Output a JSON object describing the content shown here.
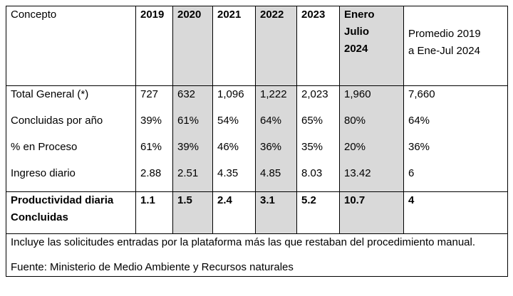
{
  "table": {
    "header": {
      "concepto": "Concepto",
      "years": [
        "2019",
        "2020",
        "2021",
        "2022",
        "2023"
      ],
      "enero": [
        "Enero",
        "Julio",
        "2024"
      ],
      "promedio": [
        "Promedio 2019",
        "a Ene-Jul 2024"
      ]
    },
    "rows": [
      {
        "label": "Total General (*)",
        "values": [
          "727",
          "632",
          "1,096",
          "1,222",
          "2,023",
          "1,960",
          "7,660"
        ]
      },
      {
        "label": "Concluidas por año",
        "values": [
          "39%",
          "61%",
          "54%",
          "64%",
          "65%",
          "80%",
          "64%"
        ]
      },
      {
        "label": "% en Proceso",
        "values": [
          "61%",
          "39%",
          "46%",
          "36%",
          "35%",
          "20%",
          "36%"
        ]
      },
      {
        "label": "Ingreso diario",
        "values": [
          "2.88",
          "2.51",
          "4.35",
          "4.85",
          "8.03",
          "13.42",
          "6"
        ]
      }
    ],
    "productividad": {
      "label": [
        "Productividad diaria",
        "Concluidas"
      ],
      "values": [
        "1.1",
        "1.5",
        "2.4",
        "3.1",
        "5.2",
        "10.7",
        "4"
      ]
    },
    "notes": [
      "Incluye las solicitudes entradas por la plataforma más las que restaban del procedimiento manual.",
      "Fuente: Ministerio de Medio Ambiente y Recursos naturales"
    ],
    "shade_color": "#d9d9d9"
  }
}
